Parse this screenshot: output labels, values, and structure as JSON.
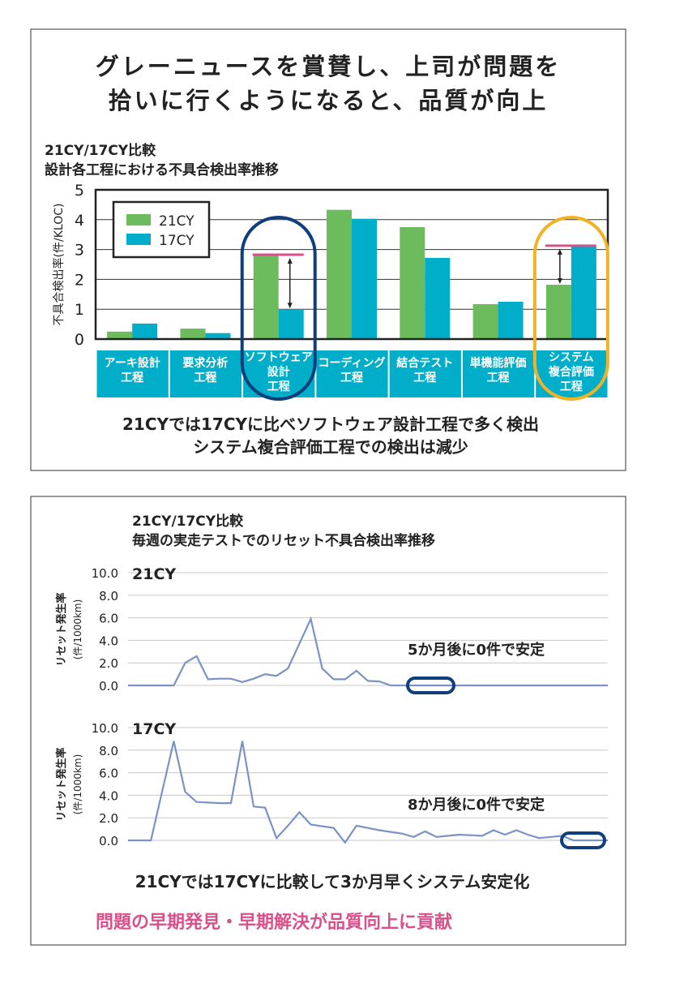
{
  "panel1": {
    "headline": [
      "グレーニュースを賞賛し、上司が問題を",
      "拾いに行くようになると、品質が向上"
    ],
    "caption": [
      "21CYでは17CYに比べソフトウェア設計工程で多く検出",
      "システム複合評価工程での検出は減少"
    ]
  },
  "panel2": {
    "caption": "21CYでは17CYに比較して3か月早くシステム安定化",
    "conclusion": "問題の早期発見・早期解決が品質向上に貢献"
  },
  "colors": {
    "c21": "#6cbb5c",
    "c17": "#00aec9",
    "line": "#7b93c4",
    "navy": "#0e3f7c",
    "orange": "#f1b224",
    "pink": "#d9508a"
  },
  "chart_data": [
    {
      "type": "bar",
      "title": [
        "21CY/17CY比較",
        "設計各工程における不具合検出率推移"
      ],
      "ylabel": "不具合検出率(件/KLOC)",
      "ylim": [
        0,
        5
      ],
      "yticks": [
        "0",
        "1",
        "2",
        "3",
        "4",
        "5"
      ],
      "categories": [
        [
          "アーキ設計",
          "工程"
        ],
        [
          "要求分析",
          "工程"
        ],
        [
          "ソフトウェア",
          "設計",
          "工程"
        ],
        [
          "コーディング",
          "工程"
        ],
        [
          "結合テスト",
          "工程"
        ],
        [
          "単機能評価",
          "工程"
        ],
        [
          "システム",
          "複合評価",
          "工程"
        ]
      ],
      "series": [
        {
          "name": "21CY",
          "values": [
            0.25,
            0.35,
            2.8,
            4.33,
            3.75,
            1.17,
            1.82
          ]
        },
        {
          "name": "17CY",
          "values": [
            0.52,
            0.2,
            1.0,
            4.03,
            2.72,
            1.25,
            3.1
          ]
        }
      ],
      "legend": "top-left",
      "grid": true,
      "highlights": [
        {
          "category": 2,
          "color": "navy"
        },
        {
          "category": 6,
          "color": "orange"
        }
      ]
    },
    {
      "type": "line",
      "title": [
        "21CY/17CY比較",
        "毎週の実走テストでのリセット不具合検出率推移"
      ],
      "ylabel": [
        "リセット発生率",
        "(件/1000km)"
      ],
      "ylim": [
        0,
        10
      ],
      "yticks": [
        "0.0",
        "2.0",
        "4.0",
        "6.0",
        "8.0",
        "10.0"
      ],
      "grid": true,
      "panels": [
        {
          "label": "21CY",
          "annotation": "5か月後に0件で安定",
          "values": [
            0,
            0,
            0,
            0,
            0,
            2.0,
            2.6,
            0.55,
            0.6,
            0.6,
            0.3,
            0.6,
            1.0,
            0.85,
            1.5,
            3.7,
            5.9,
            1.5,
            0.55,
            0.55,
            1.3,
            0.4,
            0.35,
            0,
            0,
            0,
            0,
            0,
            0,
            0,
            0,
            0,
            0,
            0,
            0,
            0,
            0,
            0,
            0,
            0,
            0,
            0,
            0
          ]
        },
        {
          "label": "17CY",
          "annotation": "8か月後に0件で安定",
          "values": [
            0,
            0,
            0,
            4.4,
            8.8,
            4.3,
            3.4,
            3.35,
            3.3,
            3.3,
            8.8,
            3.0,
            2.9,
            0.2,
            1.3,
            2.5,
            1.4,
            1.25,
            1.1,
            -0.2,
            1.3,
            1.1,
            0.9,
            0.75,
            0.6,
            0.3,
            0.8,
            0.3,
            0.4,
            0.5,
            0.45,
            0.4,
            0.9,
            0.5,
            0.9,
            0.5,
            0.2,
            0.3,
            0.4,
            0,
            0,
            0,
            0
          ]
        }
      ]
    }
  ]
}
